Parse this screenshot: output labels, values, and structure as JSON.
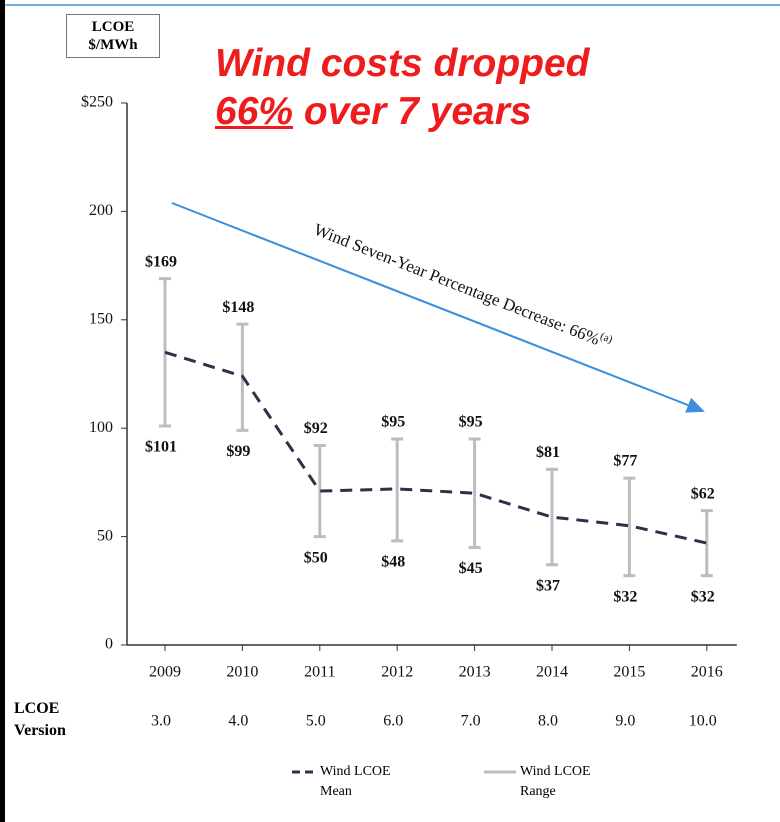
{
  "chart_data": {
    "type": "range_line",
    "headline": {
      "line1": "Wind costs dropped",
      "underlined": "66%",
      "rest": "over 7 years"
    },
    "y_label": "LCOE $/MWh",
    "arrow_label": "Wind Seven-Year Percentage Decrease: 66%",
    "arrow_label_note": "(a)",
    "categories": [
      "2009",
      "2010",
      "2011",
      "2012",
      "2013",
      "2014",
      "2015",
      "2016"
    ],
    "version_label": "LCOE Version",
    "versions": [
      "3.0",
      "4.0",
      "5.0",
      "6.0",
      "7.0",
      "8.0",
      "9.0",
      "10.0"
    ],
    "series": [
      {
        "name": "Wind LCOE Mean",
        "color": "#2b3148",
        "values": [
          135,
          124,
          71,
          72,
          70,
          59,
          55,
          47
        ]
      },
      {
        "name": "Wind LCOE Range",
        "color": "#bdbdbd",
        "low": [
          101,
          99,
          50,
          48,
          45,
          37,
          32,
          32
        ],
        "high": [
          169,
          148,
          92,
          95,
          95,
          81,
          77,
          62
        ],
        "low_labels": [
          "$101",
          "$99",
          "$50",
          "$48",
          "$45",
          "$37",
          "$32",
          "$32"
        ],
        "high_labels": [
          "$169",
          "$148",
          "$92",
          "$95",
          "$95",
          "$81",
          "$77",
          "$62"
        ]
      }
    ],
    "ylim": [
      0,
      250
    ],
    "yticks": [
      0,
      50,
      100,
      150,
      200,
      {
        "value": 250,
        "label": "$250"
      }
    ],
    "grid": false
  }
}
